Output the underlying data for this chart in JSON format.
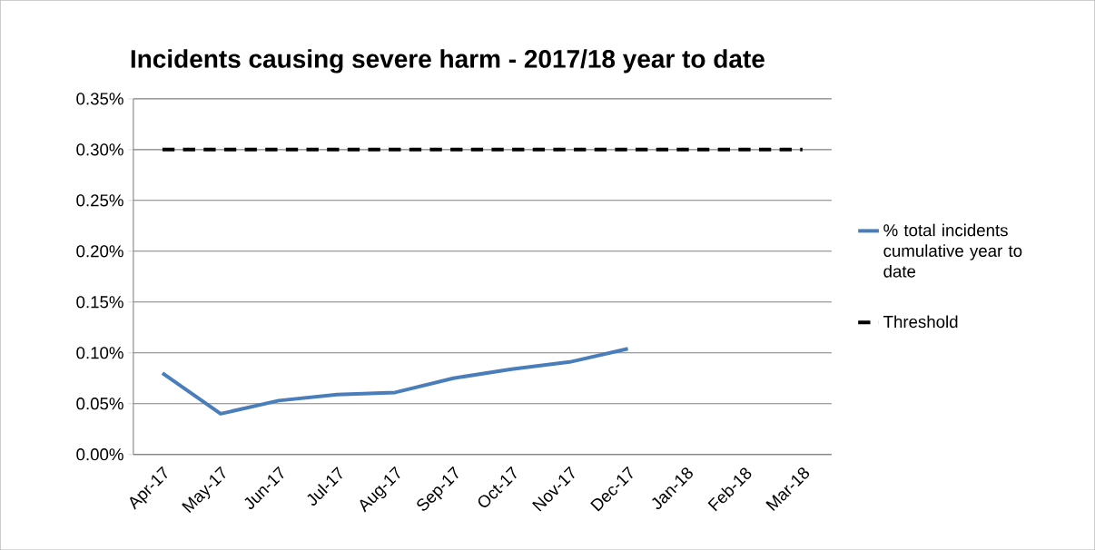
{
  "chart_data": {
    "type": "line",
    "title": "Incidents causing severe harm - 2017/18 year to date",
    "categories": [
      "Apr-17",
      "May-17",
      "Jun-17",
      "Jul-17",
      "Aug-17",
      "Sep-17",
      "Oct-17",
      "Nov-17",
      "Dec-17",
      "Jan-18",
      "Feb-18",
      "Mar-18"
    ],
    "series": [
      {
        "name": "% total incidents cumulative year to date",
        "color": "#4a7ebb",
        "line_style": "solid",
        "values": [
          0.08,
          0.04,
          0.053,
          0.059,
          0.061,
          0.075,
          0.084,
          0.091,
          0.104,
          null,
          null,
          null
        ]
      },
      {
        "name": "Threshold",
        "color": "#000000",
        "line_style": "dashed",
        "values": [
          0.3,
          0.3,
          0.3,
          0.3,
          0.3,
          0.3,
          0.3,
          0.3,
          0.3,
          0.3,
          0.3,
          0.3
        ]
      }
    ],
    "ylim": [
      0,
      0.35
    ],
    "yticks": [
      {
        "value": 0,
        "label": "0.00%"
      },
      {
        "value": 0.05,
        "label": "0.05%"
      },
      {
        "value": 0.1,
        "label": "0.10%"
      },
      {
        "value": 0.15,
        "label": "0.15%"
      },
      {
        "value": 0.2,
        "label": "0.20%"
      },
      {
        "value": 0.25,
        "label": "0.25%"
      },
      {
        "value": 0.3,
        "label": "0.30%"
      },
      {
        "value": 0.35,
        "label": "0.35%"
      }
    ],
    "grid": "y",
    "legend": "right",
    "marker": "none"
  }
}
